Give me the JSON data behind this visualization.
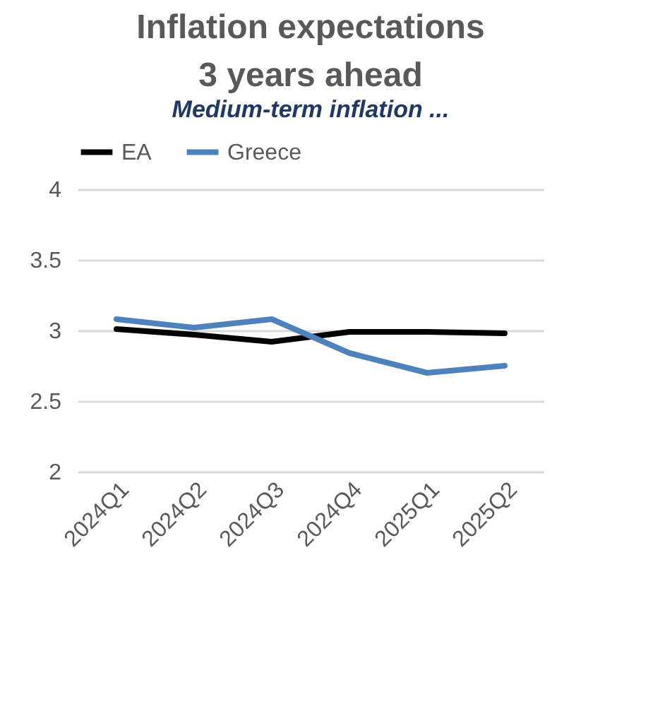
{
  "chart_data": {
    "type": "line",
    "title": [
      "Inflation expectations",
      "3 years ahead"
    ],
    "subtitle": "Medium-term inflation ...",
    "categories": [
      "2024Q1",
      "2024Q2",
      "2024Q3",
      "2024Q4",
      "2025Q1",
      "2025Q2"
    ],
    "series": [
      {
        "name": "EA",
        "color": "#000000",
        "values": [
          3.01,
          2.97,
          2.92,
          2.99,
          2.99,
          2.98
        ]
      },
      {
        "name": "Greece",
        "color": "#4f81bd",
        "values": [
          3.08,
          3.02,
          3.08,
          2.84,
          2.7,
          2.75
        ]
      }
    ],
    "ylim": [
      2,
      4
    ],
    "yticks": [
      2,
      2.5,
      3,
      3.5,
      4
    ],
    "grid": "y",
    "legend": "top",
    "marker": "none",
    "line_style": "solid"
  }
}
